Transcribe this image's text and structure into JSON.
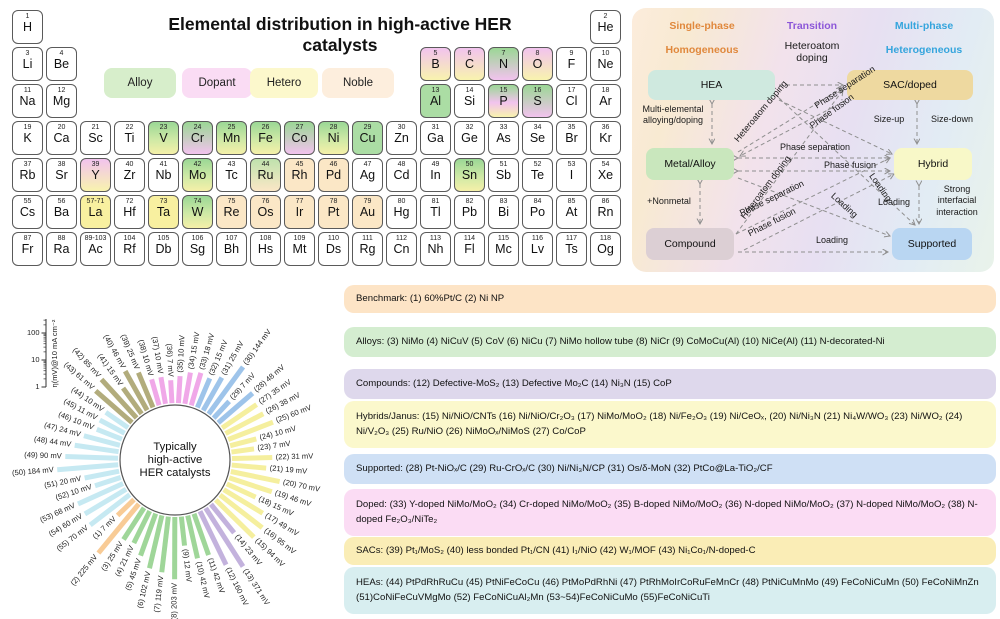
{
  "title": "Elemental distribution in high-active HER catalysts",
  "pt_legend": [
    {
      "label": "Alloy",
      "bg": "#d7eecb"
    },
    {
      "label": "Dopant",
      "bg": "#fadcf4"
    },
    {
      "label": "Hetero",
      "bg": "#fcf8cc"
    },
    {
      "label": "Noble",
      "bg": "#fdeedd"
    }
  ],
  "elements": [
    [
      1,
      "H",
      1,
      1,
      ""
    ],
    [
      2,
      "He",
      1,
      18,
      ""
    ],
    [
      3,
      "Li",
      2,
      1,
      ""
    ],
    [
      4,
      "Be",
      2,
      2,
      ""
    ],
    [
      5,
      "B",
      2,
      13,
      "dh"
    ],
    [
      6,
      "C",
      2,
      14,
      "dh"
    ],
    [
      7,
      "N",
      2,
      15,
      "ad"
    ],
    [
      8,
      "O",
      2,
      16,
      "dh"
    ],
    [
      9,
      "F",
      2,
      17,
      ""
    ],
    [
      10,
      "Ne",
      2,
      18,
      ""
    ],
    [
      11,
      "Na",
      3,
      1,
      ""
    ],
    [
      12,
      "Mg",
      3,
      2,
      ""
    ],
    [
      13,
      "Al",
      3,
      13,
      "a"
    ],
    [
      14,
      "Si",
      3,
      14,
      ""
    ],
    [
      15,
      "P",
      3,
      15,
      "adh"
    ],
    [
      16,
      "S",
      3,
      16,
      "ad"
    ],
    [
      17,
      "Cl",
      3,
      17,
      ""
    ],
    [
      18,
      "Ar",
      3,
      18,
      ""
    ],
    [
      19,
      "K",
      4,
      1,
      ""
    ],
    [
      20,
      "Ca",
      4,
      2,
      ""
    ],
    [
      21,
      "Sc",
      4,
      3,
      ""
    ],
    [
      22,
      "Ti",
      4,
      4,
      ""
    ],
    [
      23,
      "V",
      4,
      5,
      "ah"
    ],
    [
      24,
      "Cr",
      4,
      6,
      "ad"
    ],
    [
      25,
      "Mn",
      4,
      7,
      "ah"
    ],
    [
      26,
      "Fe",
      4,
      8,
      "ah"
    ],
    [
      27,
      "Co",
      4,
      9,
      "ad"
    ],
    [
      28,
      "Ni",
      4,
      10,
      "ah"
    ],
    [
      29,
      "Cu",
      4,
      11,
      "a"
    ],
    [
      30,
      "Zn",
      4,
      12,
      ""
    ],
    [
      31,
      "Ga",
      4,
      13,
      ""
    ],
    [
      32,
      "Ge",
      4,
      14,
      ""
    ],
    [
      33,
      "As",
      4,
      15,
      ""
    ],
    [
      34,
      "Se",
      4,
      16,
      ""
    ],
    [
      35,
      "Br",
      4,
      17,
      ""
    ],
    [
      36,
      "Kr",
      4,
      18,
      ""
    ],
    [
      37,
      "Rb",
      5,
      1,
      ""
    ],
    [
      38,
      "Sr",
      5,
      2,
      ""
    ],
    [
      39,
      "Y",
      5,
      3,
      "dh"
    ],
    [
      40,
      "Zr",
      5,
      4,
      ""
    ],
    [
      41,
      "Nb",
      5,
      5,
      ""
    ],
    [
      42,
      "Mo",
      5,
      6,
      "ah"
    ],
    [
      43,
      "Tc",
      5,
      7,
      ""
    ],
    [
      44,
      "Ru",
      5,
      8,
      "an"
    ],
    [
      45,
      "Rh",
      5,
      9,
      "n"
    ],
    [
      46,
      "Pd",
      5,
      10,
      "n"
    ],
    [
      47,
      "Ag",
      5,
      11,
      ""
    ],
    [
      48,
      "Cd",
      5,
      12,
      ""
    ],
    [
      49,
      "In",
      5,
      13,
      ""
    ],
    [
      50,
      "Sn",
      5,
      14,
      "ah"
    ],
    [
      51,
      "Sb",
      5,
      15,
      ""
    ],
    [
      52,
      "Te",
      5,
      16,
      ""
    ],
    [
      53,
      "I",
      5,
      17,
      ""
    ],
    [
      54,
      "Xe",
      5,
      18,
      ""
    ],
    [
      55,
      "Cs",
      6,
      1,
      ""
    ],
    [
      56,
      "Ba",
      6,
      2,
      ""
    ],
    [
      "57-71",
      "La",
      6,
      3,
      "h"
    ],
    [
      72,
      "Hf",
      6,
      4,
      ""
    ],
    [
      73,
      "Ta",
      6,
      5,
      "h"
    ],
    [
      74,
      "W",
      6,
      6,
      "ah"
    ],
    [
      75,
      "Re",
      6,
      7,
      "n"
    ],
    [
      76,
      "Os",
      6,
      8,
      "n"
    ],
    [
      77,
      "Ir",
      6,
      9,
      "n"
    ],
    [
      78,
      "Pt",
      6,
      10,
      "n"
    ],
    [
      79,
      "Au",
      6,
      11,
      "n"
    ],
    [
      80,
      "Hg",
      6,
      12,
      ""
    ],
    [
      81,
      "Tl",
      6,
      13,
      ""
    ],
    [
      82,
      "Pb",
      6,
      14,
      ""
    ],
    [
      83,
      "Bi",
      6,
      15,
      ""
    ],
    [
      84,
      "Po",
      6,
      16,
      ""
    ],
    [
      85,
      "At",
      6,
      17,
      ""
    ],
    [
      86,
      "Rn",
      6,
      18,
      ""
    ],
    [
      87,
      "Fr",
      7,
      1,
      ""
    ],
    [
      88,
      "Ra",
      7,
      2,
      ""
    ],
    [
      "89-103",
      "Ac",
      7,
      3,
      ""
    ],
    [
      104,
      "Rf",
      7,
      4,
      ""
    ],
    [
      105,
      "Db",
      7,
      5,
      ""
    ],
    [
      106,
      "Sg",
      7,
      6,
      ""
    ],
    [
      107,
      "Bh",
      7,
      7,
      ""
    ],
    [
      108,
      "Hs",
      7,
      8,
      ""
    ],
    [
      109,
      "Mt",
      7,
      9,
      ""
    ],
    [
      110,
      "Ds",
      7,
      10,
      ""
    ],
    [
      111,
      "Rg",
      7,
      11,
      ""
    ],
    [
      112,
      "Cn",
      7,
      12,
      ""
    ],
    [
      113,
      "Nh",
      7,
      13,
      ""
    ],
    [
      114,
      "Fl",
      7,
      14,
      ""
    ],
    [
      115,
      "Mc",
      7,
      15,
      ""
    ],
    [
      116,
      "Lv",
      7,
      16,
      ""
    ],
    [
      117,
      "Ts",
      7,
      17,
      ""
    ],
    [
      118,
      "Og",
      7,
      18,
      ""
    ]
  ],
  "diagram": {
    "headers": [
      {
        "text": "Single-phase",
        "color": "#e0883c"
      },
      {
        "text": "Transition",
        "color": "#8c57d8"
      },
      {
        "text": "Multi-phase",
        "color": "#35a5dd"
      },
      {
        "text": "Homogeneous",
        "color": "#e0883c"
      },
      {
        "text": "Heteroatom doping",
        "color": "#1a1a1a"
      },
      {
        "text": "Heterogeneous",
        "color": "#35a5dd"
      }
    ],
    "nodes": [
      {
        "label": "HEA",
        "bg": "#cfe9df"
      },
      {
        "label": "SAC/doped",
        "bg": "#eed9a0"
      },
      {
        "label": "Metal/Alloy",
        "bg": "#c9e7bd"
      },
      {
        "label": "Hybrid",
        "bg": "#f8f8c8"
      },
      {
        "label": "Compound",
        "bg": "#dccfd4"
      },
      {
        "label": "Supported",
        "bg": "#b9d6f2"
      }
    ],
    "labels": [
      {
        "text": "Multi-elemental\nalloying/doping"
      },
      {
        "text": "+Nonmetal"
      },
      {
        "text": "Size-up"
      },
      {
        "text": "Size-down"
      },
      {
        "text": "Strong\ninterfacial\ninteraction"
      },
      {
        "text": "Heteroatom doping"
      },
      {
        "text": "Heteroatom doping"
      },
      {
        "text": "Phase separation"
      },
      {
        "text": "Phase fusion"
      },
      {
        "text": "Phase separation"
      },
      {
        "text": "Phase fusion"
      },
      {
        "text": "Phase separation"
      },
      {
        "text": "Phase fusion"
      },
      {
        "text": "Loading"
      },
      {
        "text": "Loading"
      },
      {
        "text": "Loading"
      },
      {
        "text": "Loading"
      }
    ]
  },
  "chart_data": {
    "type": "radial-bar",
    "scale": "log",
    "title_lines": [
      "Typically",
      "high-active",
      "HER catalysts"
    ],
    "axis_label": "η(mV)@10 mA cm⁻²",
    "axis_ticks": [
      1,
      10,
      100
    ],
    "unit": "mV",
    "start_angle_deg": 226,
    "direction": "counterclockwise",
    "groups": [
      {
        "name": "Benchmark",
        "color": "#f8cb96",
        "items": [
          [
            1,
            7
          ],
          [
            2,
            225
          ]
        ]
      },
      {
        "name": "Alloys",
        "color": "#9fd699",
        "items": [
          [
            3,
            25
          ],
          [
            4,
            21
          ],
          [
            5,
            45
          ],
          [
            6,
            102
          ],
          [
            7,
            119
          ],
          [
            8,
            203
          ],
          [
            9,
            12
          ],
          [
            10,
            42
          ],
          [
            11,
            42
          ]
        ]
      },
      {
        "name": "Compounds",
        "color": "#c3b2dd",
        "items": [
          [
            12,
            160
          ],
          [
            13,
            371
          ],
          [
            14,
            23
          ]
        ]
      },
      {
        "name": "Hybrids/Janus",
        "color": "#f5ef9e",
        "items": [
          [
            15,
            94
          ],
          [
            16,
            95
          ],
          [
            17,
            49
          ],
          [
            18,
            15
          ],
          [
            19,
            46
          ],
          [
            20,
            70
          ],
          [
            21,
            19
          ],
          [
            22,
            31
          ],
          [
            23,
            7
          ],
          [
            24,
            10
          ],
          [
            25,
            60
          ],
          [
            26,
            38
          ],
          [
            27,
            35
          ]
        ]
      },
      {
        "name": "Supported",
        "color": "#9ec4ea",
        "items": [
          [
            28,
            48
          ],
          [
            29,
            7
          ],
          [
            30,
            144
          ],
          [
            31,
            25
          ],
          [
            32,
            15
          ]
        ]
      },
      {
        "name": "Doped",
        "color": "#f0a8e8",
        "items": [
          [
            33,
            18
          ],
          [
            34,
            15
          ],
          [
            35,
            10
          ],
          [
            36,
            7
          ],
          [
            37,
            10
          ],
          [
            38,
            10
          ]
        ]
      },
      {
        "name": "SACs",
        "color": "#b2ac7c",
        "items": [
          [
            39,
            25
          ],
          [
            40,
            46
          ],
          [
            41,
            15
          ],
          [
            42,
            85
          ],
          [
            43,
            61
          ]
        ]
      },
      {
        "name": "HEAs",
        "color": "#c6e9f2",
        "items": [
          [
            44,
            10
          ],
          [
            45,
            11
          ],
          [
            46,
            10
          ],
          [
            47,
            24
          ],
          [
            48,
            44
          ],
          [
            49,
            90
          ],
          [
            50,
            184
          ],
          [
            51,
            20
          ],
          [
            52,
            10
          ],
          [
            53,
            68
          ],
          [
            54,
            60
          ],
          [
            55,
            70
          ]
        ]
      }
    ]
  },
  "legend_rows": [
    {
      "bg": "#fde4c6",
      "text": "Benchmark: (1) 60%Pt/C (2) Ni NP"
    },
    {
      "bg": "#d4edd0",
      "text": "Alloys: (3) NiMo (4) NiCuV (5) CoV (6) NiCu (7) NiMo hollow tube (8) NiCr (9) CoMoCu(Al) (10) NiCe(Al) (11) N-decorated-Ni"
    },
    {
      "bg": "#ded8ec",
      "text": "Compounds: (12) Defective-MoS₂ (13) Defective Mo₂C (14) Ni₃N (15) CoP"
    },
    {
      "bg": "#fbf8cc",
      "text": "Hybrids/Janus: (15) Ni/NiO/CNTs (16) Ni/NiO/Cr₂O₃ (17) NiMo/MoO₂ (18) Ni/Fe₂O₃ (19) Ni/CeOₓ, (20) Ni/Ni₃N (21) Ni₄W/WO₃ (23) Ni/WO₂ (24) Ni/V₂O₃ (25) Ru/NiO (26) NiMoOₓ/NiMoS (27) Co/CoP"
    },
    {
      "bg": "#cfe0f5",
      "text": "Supported: (28) Pt-NiOₓ/C (29) Ru-CrOₓ/C (30) Ni/Ni₃N/CP (31) Os/δ-MoN (32) PtCo@La-TiO₂/CF"
    },
    {
      "bg": "#fbdcf4",
      "text": "Doped: (33) Y-doped NiMo/MoO₂ (34) Cr-doped NiMo/MoO₂ (35) B-doped NiMo/MoO₂ (36) N-doped NiMo/MoO₂ (37) N-doped NiMo/MoO₂ (38) N-doped Fe₂O₃/NiTe₂"
    },
    {
      "bg": "#faedb6",
      "text": "SACs: (39) Pt₁/MoS₂ (40) less bonded Pt₁/CN (41) I₁/NiO (42) W₁/MOF (43) Ni₁Co₁/N-doped-C"
    },
    {
      "bg": "#d8eef0",
      "text": "HEAs: (44) PtPdRhRuCu (45) PtNiFeCoCu (46) PtMoPdRhNi (47) PtRhMoIrCoRuFeMnCr (48) PtNiCuMnMo (49) FeCoNiCuMn (50) FeCoNiMnZn (51)CoNiFeCuVMgMo (52) FeCoNiCuAl₂Mn (53~54)FeCoNiCuMo (55)FeCoNiCuTi"
    }
  ]
}
